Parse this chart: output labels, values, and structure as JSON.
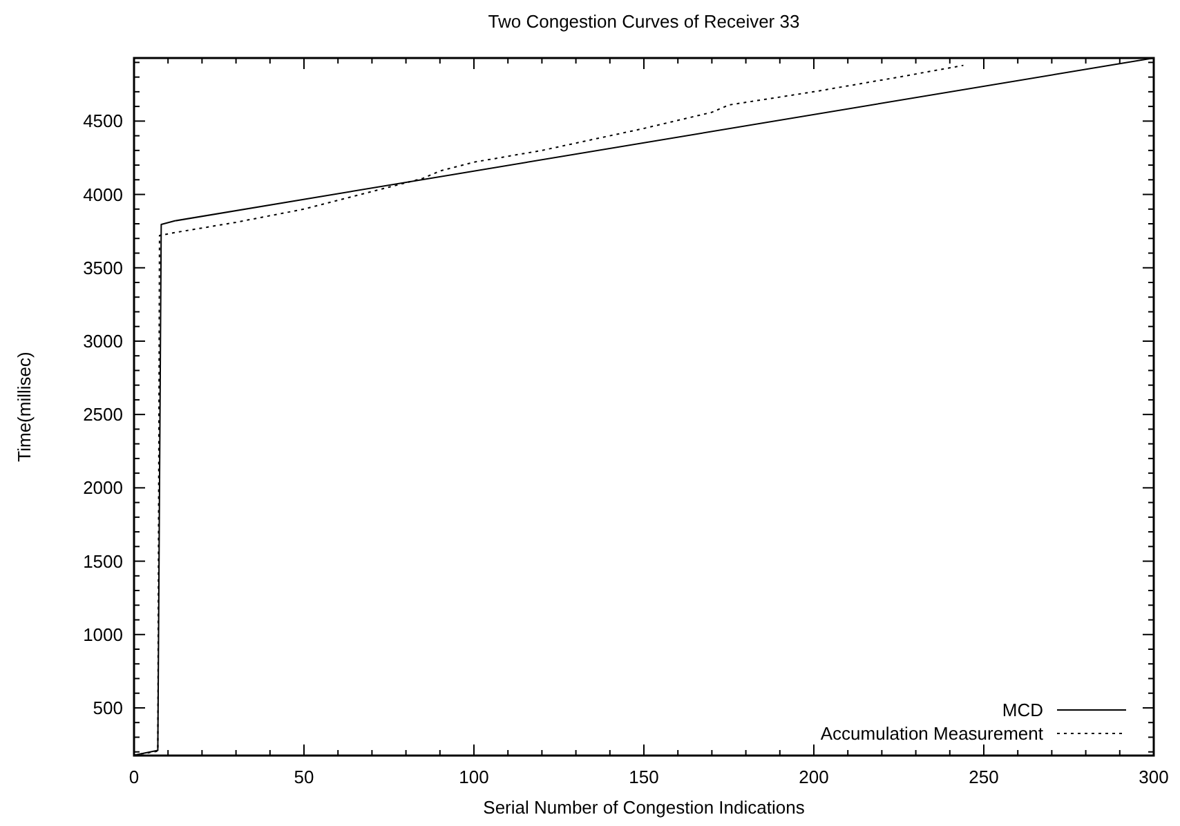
{
  "chart_data": {
    "type": "line",
    "title": "Two Congestion Curves of Receiver 33",
    "xlabel": "Serial Number of Congestion Indications",
    "ylabel": "Time(millisec)",
    "xlim": [
      0,
      300
    ],
    "ylim": [
      175,
      4930
    ],
    "xticks": [
      0,
      {
        "value": 10,
        "label": null
      },
      {
        "value": 20,
        "label": null
      },
      {
        "value": 30,
        "label": null
      },
      {
        "value": 40,
        "label": null
      },
      50,
      {
        "value": 60,
        "label": null
      },
      {
        "value": 70,
        "label": null
      },
      {
        "value": 80,
        "label": null
      },
      {
        "value": 90,
        "label": null
      },
      100,
      {
        "value": 110,
        "label": null
      },
      {
        "value": 120,
        "label": null
      },
      {
        "value": 130,
        "label": null
      },
      {
        "value": 140,
        "label": null
      },
      150,
      {
        "value": 160,
        "label": null
      },
      {
        "value": 170,
        "label": null
      },
      {
        "value": 180,
        "label": null
      },
      {
        "value": 190,
        "label": null
      },
      200,
      {
        "value": 210,
        "label": null
      },
      {
        "value": 220,
        "label": null
      },
      {
        "value": 230,
        "label": null
      },
      {
        "value": 240,
        "label": null
      },
      250,
      {
        "value": 260,
        "label": null
      },
      {
        "value": 270,
        "label": null
      },
      {
        "value": 280,
        "label": null
      },
      {
        "value": 290,
        "label": null
      },
      300
    ],
    "yticks": [
      {
        "value": 200,
        "label": null
      },
      {
        "value": 300,
        "label": null
      },
      {
        "value": 400,
        "label": null
      },
      500,
      {
        "value": 600,
        "label": null
      },
      {
        "value": 700,
        "label": null
      },
      {
        "value": 800,
        "label": null
      },
      {
        "value": 900,
        "label": null
      },
      1000,
      {
        "value": 1100,
        "label": null
      },
      {
        "value": 1200,
        "label": null
      },
      {
        "value": 1300,
        "label": null
      },
      {
        "value": 1400,
        "label": null
      },
      1500,
      {
        "value": 1600,
        "label": null
      },
      {
        "value": 1700,
        "label": null
      },
      {
        "value": 1800,
        "label": null
      },
      {
        "value": 1900,
        "label": null
      },
      2000,
      {
        "value": 2100,
        "label": null
      },
      {
        "value": 2200,
        "label": null
      },
      {
        "value": 2300,
        "label": null
      },
      {
        "value": 2400,
        "label": null
      },
      2500,
      {
        "value": 2600,
        "label": null
      },
      {
        "value": 2700,
        "label": null
      },
      {
        "value": 2800,
        "label": null
      },
      {
        "value": 2900,
        "label": null
      },
      3000,
      {
        "value": 3100,
        "label": null
      },
      {
        "value": 3200,
        "label": null
      },
      {
        "value": 3300,
        "label": null
      },
      {
        "value": 3400,
        "label": null
      },
      3500,
      {
        "value": 3600,
        "label": null
      },
      {
        "value": 3700,
        "label": null
      },
      {
        "value": 3800,
        "label": null
      },
      {
        "value": 3900,
        "label": null
      },
      4000,
      {
        "value": 4100,
        "label": null
      },
      {
        "value": 4200,
        "label": null
      },
      {
        "value": 4300,
        "label": null
      },
      {
        "value": 4400,
        "label": null
      },
      4500,
      {
        "value": 4600,
        "label": null
      },
      {
        "value": 4700,
        "label": null
      },
      {
        "value": 4800,
        "label": null
      },
      {
        "value": 4900,
        "label": null
      }
    ],
    "grid": false,
    "legend": "bottom right",
    "marker": "none",
    "series": [
      {
        "name": "MCD",
        "color": "#000000",
        "line_style": "solid",
        "x": [
          0,
          7,
          8,
          12,
          300
        ],
        "values": [
          177,
          210,
          3795,
          3820,
          4930
        ]
      },
      {
        "name": "Accumulation Measurement",
        "color": "#000000",
        "line_style": "dotted",
        "x": [
          0,
          7,
          7.5,
          12,
          30,
          50,
          70,
          85,
          90,
          100,
          120,
          150,
          170,
          175,
          200,
          225,
          244
        ],
        "values": [
          177,
          205,
          3720,
          3740,
          3810,
          3900,
          4020,
          4110,
          4160,
          4220,
          4300,
          4450,
          4560,
          4610,
          4700,
          4800,
          4880
        ]
      }
    ]
  }
}
